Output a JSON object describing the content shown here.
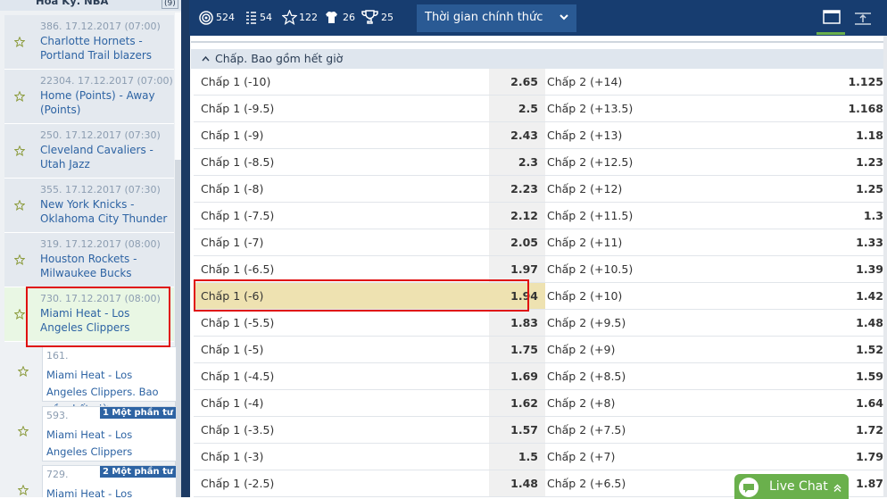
{
  "sidebar": {
    "league": "Hoa Kỳ. NBA",
    "count": "(9)",
    "matches": [
      {
        "info": "386. 17.12.2017 (07:00)",
        "teams": "Charlotte Hornets - Portland Trail blazers"
      },
      {
        "info": "22304. 17.12.2017 (07:00)",
        "teams": "Home (Points) - Away (Points)"
      },
      {
        "info": "250. 17.12.2017 (07:30)",
        "teams": "Cleveland Cavaliers - Utah Jazz"
      },
      {
        "info": "355. 17.12.2017 (07:30)",
        "teams": "New York Knicks - Oklahoma City Thunder"
      },
      {
        "info": "319. 17.12.2017 (08:00)",
        "teams": "Houston Rockets - Milwaukee Bucks"
      },
      {
        "info": "730. 17.12.2017 (08:00)",
        "teams": "Miami Heat - Los Angeles Clippers"
      }
    ],
    "sub_markets": [
      {
        "id": "161.",
        "title": "Miami Heat - Los Angeles Clippers. Bao gồm hết giờ"
      },
      {
        "id": "593.",
        "badge": "1 Một phần tư",
        "title": "Miami Heat - Los Angeles Clippers"
      },
      {
        "id": "729.",
        "badge": "2 Một phần tư",
        "title": "Miami Heat - Los Angeles"
      }
    ]
  },
  "toolbar": {
    "counts": [
      "524",
      "54",
      "122",
      "26",
      "25"
    ],
    "dropdown": "Thời gian chính thức"
  },
  "market": {
    "title": "Chấp. Bao gồm hết giờ",
    "rows": [
      [
        "Chấp 1 (-10)",
        "2.65",
        "Chấp 2 (+14)",
        "1.125"
      ],
      [
        "Chấp 1 (-9.5)",
        "2.5",
        "Chấp 2 (+13.5)",
        "1.168"
      ],
      [
        "Chấp 1 (-9)",
        "2.43",
        "Chấp 2 (+13)",
        "1.18"
      ],
      [
        "Chấp 1 (-8.5)",
        "2.3",
        "Chấp 2 (+12.5)",
        "1.23"
      ],
      [
        "Chấp 1 (-8)",
        "2.23",
        "Chấp 2 (+12)",
        "1.25"
      ],
      [
        "Chấp 1 (-7.5)",
        "2.12",
        "Chấp 2 (+11.5)",
        "1.3"
      ],
      [
        "Chấp 1 (-7)",
        "2.05",
        "Chấp 2 (+11)",
        "1.33"
      ],
      [
        "Chấp 1 (-6.5)",
        "1.97",
        "Chấp 2 (+10.5)",
        "1.39"
      ],
      [
        "Chấp 1 (-6)",
        "1.94",
        "Chấp 2 (+10)",
        "1.42"
      ],
      [
        "Chấp 1 (-5.5)",
        "1.83",
        "Chấp 2 (+9.5)",
        "1.48"
      ],
      [
        "Chấp 1 (-5)",
        "1.75",
        "Chấp 2 (+9)",
        "1.52"
      ],
      [
        "Chấp 1 (-4.5)",
        "1.69",
        "Chấp 2 (+8.5)",
        "1.59"
      ],
      [
        "Chấp 1 (-4)",
        "1.62",
        "Chấp 2 (+8)",
        "1.64"
      ],
      [
        "Chấp 1 (-3.5)",
        "1.57",
        "Chấp 2 (+7.5)",
        "1.72"
      ],
      [
        "Chấp 1 (-3)",
        "1.5",
        "Chấp 2 (+7)",
        "1.79"
      ],
      [
        "Chấp 1 (-2.5)",
        "1.48",
        "Chấp 2 (+6.5)",
        "1.87"
      ]
    ]
  },
  "live_chat": "Live Chat"
}
